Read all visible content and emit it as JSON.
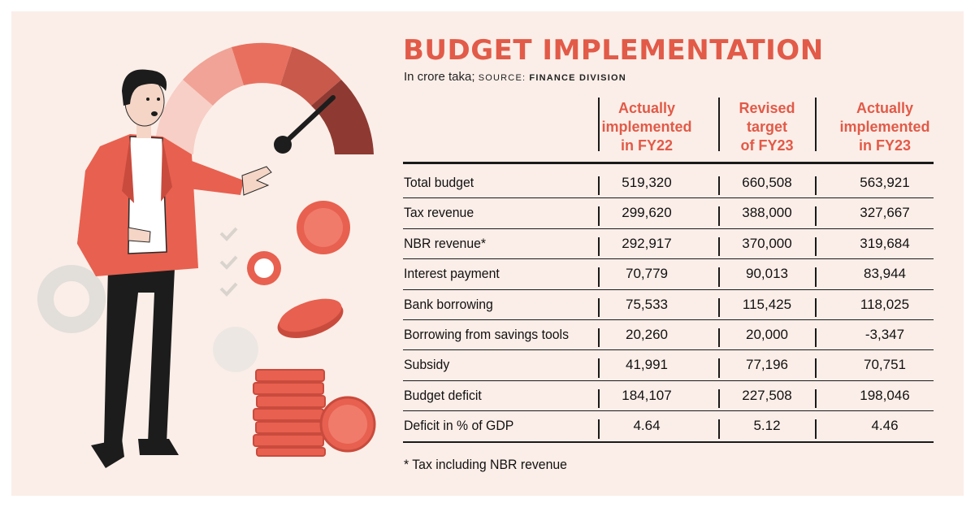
{
  "title": "BUDGET IMPLEMENTATION",
  "subtitle_main": "In crore taka;",
  "subtitle_source_label": "SOURCE:",
  "subtitle_source_value": "FINANCE DIVISION",
  "footnote": "* Tax including NBR revenue",
  "colors": {
    "accent": "#e25a48",
    "background": "#fbeee8",
    "text": "#111111"
  },
  "chart_data": {
    "type": "table",
    "title": "BUDGET IMPLEMENTATION",
    "columns": [
      [
        "Actually",
        "implemented",
        "in FY22"
      ],
      [
        "Revised",
        "target",
        "of FY23"
      ],
      [
        "Actually",
        "implemented",
        "in FY23"
      ]
    ],
    "rows": [
      {
        "label": "Total budget",
        "values": [
          "519,320",
          "660,508",
          "563,921"
        ]
      },
      {
        "label": "Tax revenue",
        "values": [
          "299,620",
          "388,000",
          "327,667"
        ]
      },
      {
        "label": "NBR revenue*",
        "values": [
          "292,917",
          "370,000",
          "319,684"
        ]
      },
      {
        "label": "Interest payment",
        "values": [
          "70,779",
          "90,013",
          "83,944"
        ]
      },
      {
        "label": "Bank borrowing",
        "values": [
          "75,533",
          "115,425",
          "118,025"
        ]
      },
      {
        "label": "Borrowing from savings tools",
        "values": [
          "20,260",
          "20,000",
          "-3,347"
        ]
      },
      {
        "label": "Subsidy",
        "values": [
          "41,991",
          "77,196",
          "70,751"
        ]
      },
      {
        "label": "Budget deficit",
        "values": [
          "184,107",
          "227,508",
          "198,046"
        ]
      },
      {
        "label": "Deficit in % of GDP",
        "values": [
          "4.64",
          "5.12",
          "4.46"
        ]
      }
    ]
  }
}
